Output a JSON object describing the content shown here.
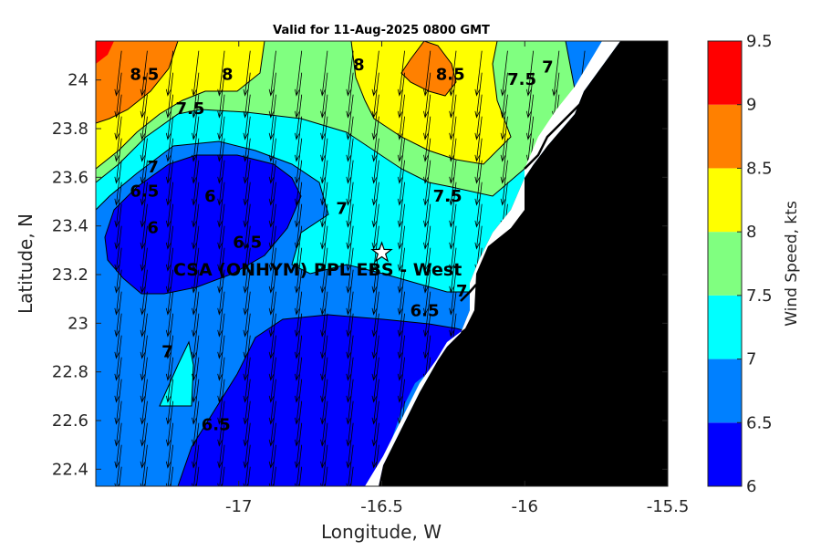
{
  "title": "Valid for 11-Aug-2025 0800 GMT",
  "xlabel": "Longitude, W",
  "ylabel": "Latitude, N",
  "colorbar_label": "Wind Speed, kts",
  "site_label": "CSA (ONHYM) PPL EBS  - West",
  "site_icon": "star-icon",
  "colors": {
    "land": "#000000",
    "coast_white": "#ffffff",
    "levels": [
      "#0000ff",
      "#0080ff",
      "#00ffff",
      "#80ff80",
      "#ffff00",
      "#ff8000",
      "#ff0000"
    ]
  },
  "chart_data": {
    "type": "heatmap",
    "subtype": "filled contour with wind vectors",
    "xlim": [
      -17.5,
      -15.5
    ],
    "ylim": [
      22.33,
      24.16
    ],
    "x_ticks": [
      -17,
      -16.5,
      -16,
      -15.5
    ],
    "x_tick_labels": [
      "-17",
      "-16.5",
      "-16",
      "-15.5"
    ],
    "y_ticks": [
      22.4,
      22.6,
      22.8,
      23,
      23.2,
      23.4,
      23.6,
      23.8,
      24
    ],
    "y_tick_labels": [
      "22.4",
      "22.6",
      "22.8",
      "23",
      "23.2",
      "23.4",
      "23.6",
      "23.8",
      "24"
    ],
    "colorbar_ticks": [
      6,
      6.5,
      7,
      7.5,
      8,
      8.5,
      9,
      9.5
    ],
    "colorbar_tick_labels": [
      "6",
      "6.5",
      "7",
      "7.5",
      "8",
      "8.5",
      "9",
      "9.5"
    ],
    "site": {
      "lon": -16.5,
      "lat": 23.29
    },
    "contour_labels": [
      {
        "text": "8.5",
        "lon": -17.33,
        "lat": 24.0
      },
      {
        "text": "8",
        "lon": -17.04,
        "lat": 24.0
      },
      {
        "text": "7.5",
        "lon": -17.17,
        "lat": 23.86
      },
      {
        "text": "8",
        "lon": -16.58,
        "lat": 24.04
      },
      {
        "text": "8.5",
        "lon": -16.26,
        "lat": 24.0
      },
      {
        "text": "7.5",
        "lon": -16.01,
        "lat": 23.98
      },
      {
        "text": "7",
        "lon": -15.92,
        "lat": 24.03
      },
      {
        "text": "7",
        "lon": -17.3,
        "lat": 23.62
      },
      {
        "text": "6.5",
        "lon": -17.33,
        "lat": 23.52
      },
      {
        "text": "6",
        "lon": -17.1,
        "lat": 23.5
      },
      {
        "text": "6",
        "lon": -17.3,
        "lat": 23.37
      },
      {
        "text": "6.5",
        "lon": -16.97,
        "lat": 23.31
      },
      {
        "text": "7",
        "lon": -16.64,
        "lat": 23.45
      },
      {
        "text": "7.5",
        "lon": -16.27,
        "lat": 23.5
      },
      {
        "text": "7",
        "lon": -16.22,
        "lat": 23.11
      },
      {
        "text": "6.5",
        "lon": -16.35,
        "lat": 23.03
      },
      {
        "text": "7",
        "lon": -17.25,
        "lat": 22.86
      },
      {
        "text": "6.5",
        "lon": -17.08,
        "lat": 22.56
      }
    ],
    "wind_vectors": {
      "lon_start": -17.5,
      "lon_step": 0.09,
      "lat_start": 24.12,
      "lat_step": -0.09,
      "cols": 23,
      "rows": 20,
      "u_kts": -0.8,
      "v_kts": -6.8
    }
  }
}
